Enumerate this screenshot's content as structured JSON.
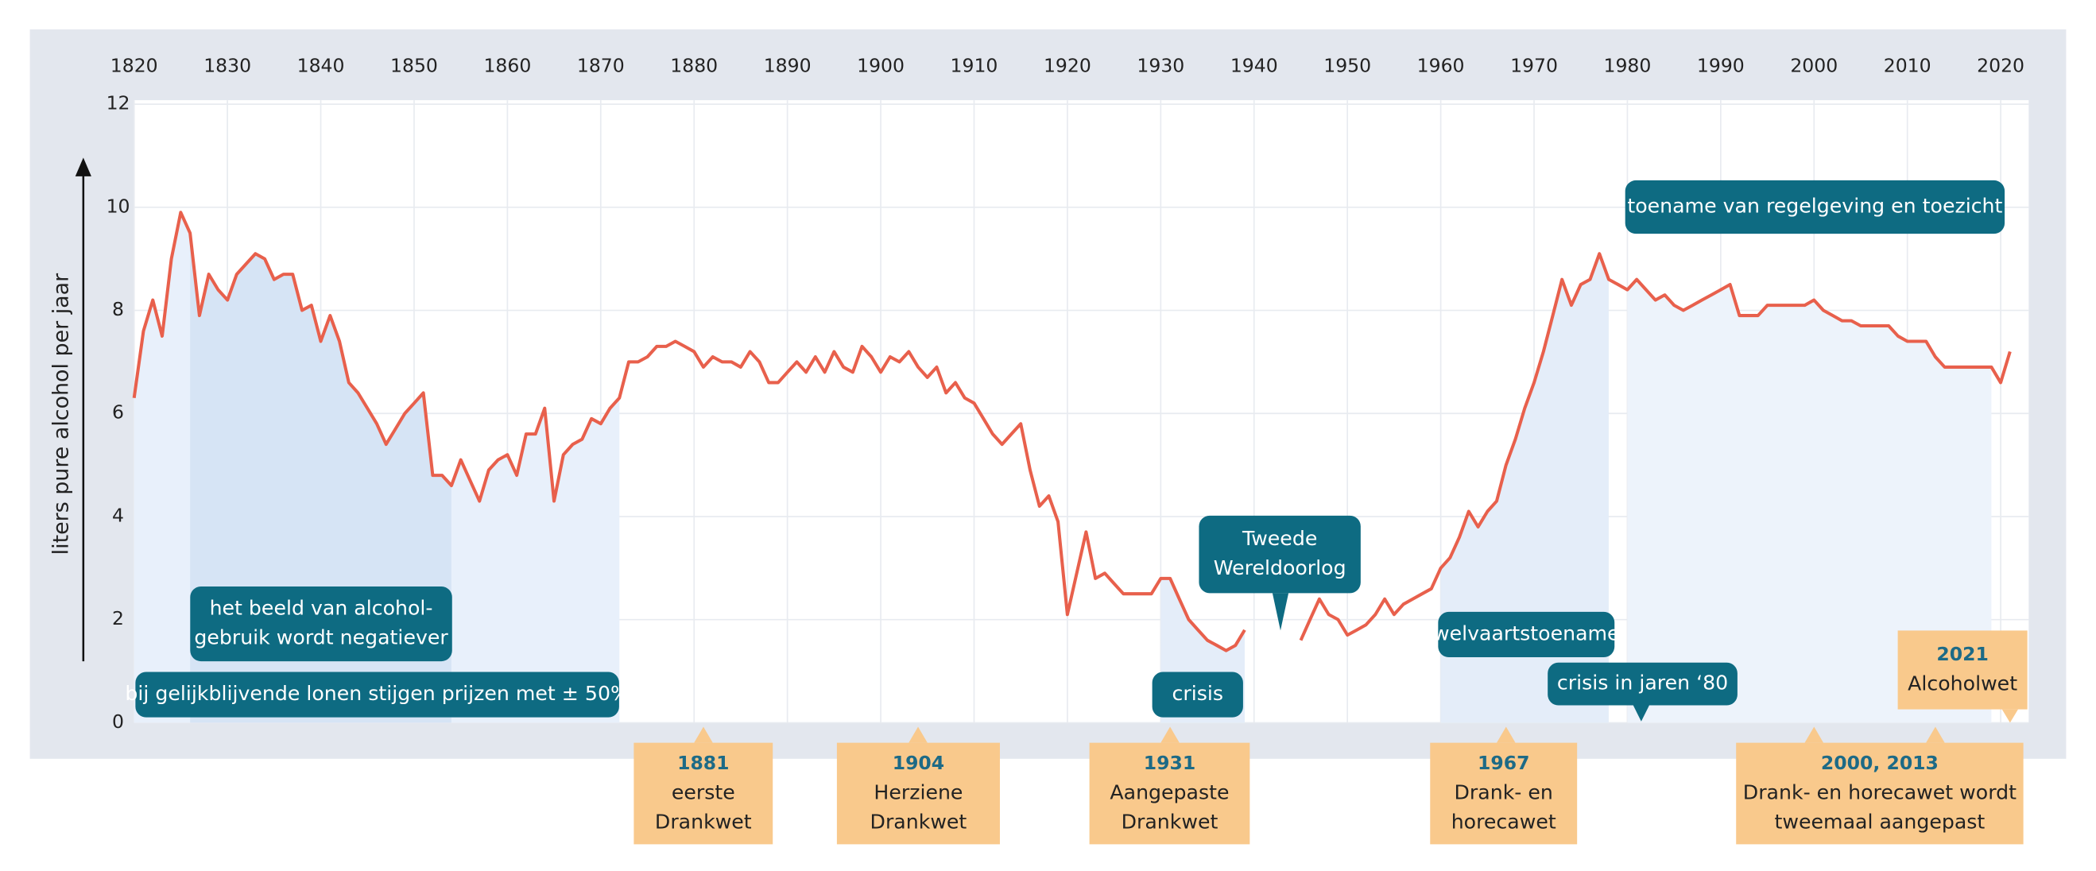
{
  "chart_data": {
    "type": "line",
    "ylabel": "liters pure alcohol per jaar",
    "xlim": [
      1820,
      2023
    ],
    "ylim": [
      0,
      12
    ],
    "xticks": [
      1820,
      1830,
      1840,
      1850,
      1860,
      1870,
      1880,
      1890,
      1900,
      1910,
      1920,
      1930,
      1940,
      1950,
      1960,
      1970,
      1980,
      1990,
      2000,
      2010,
      2020
    ],
    "yticks": [
      0,
      2,
      4,
      6,
      8,
      10,
      12
    ],
    "grid": true,
    "color": "#e8604c",
    "x": [
      1820,
      1821,
      1822,
      1823,
      1824,
      1825,
      1826,
      1827,
      1828,
      1829,
      1830,
      1831,
      1832,
      1833,
      1834,
      1835,
      1836,
      1837,
      1838,
      1839,
      1840,
      1841,
      1842,
      1843,
      1844,
      1845,
      1846,
      1847,
      1848,
      1849,
      1850,
      1851,
      1852,
      1853,
      1854,
      1855,
      1856,
      1857,
      1858,
      1859,
      1860,
      1861,
      1862,
      1863,
      1864,
      1865,
      1866,
      1867,
      1868,
      1869,
      1870,
      1871,
      1872,
      1873,
      1874,
      1875,
      1876,
      1877,
      1878,
      1879,
      1880,
      1881,
      1882,
      1883,
      1884,
      1885,
      1886,
      1887,
      1888,
      1889,
      1890,
      1891,
      1892,
      1893,
      1894,
      1895,
      1896,
      1897,
      1898,
      1899,
      1900,
      1901,
      1902,
      1903,
      1904,
      1905,
      1906,
      1907,
      1908,
      1909,
      1910,
      1911,
      1912,
      1913,
      1914,
      1915,
      1916,
      1917,
      1918,
      1919,
      1920,
      1921,
      1922,
      1923,
      1924,
      1925,
      1926,
      1927,
      1928,
      1929,
      1930,
      1931,
      1932,
      1933,
      1934,
      1935,
      1936,
      1937,
      1938,
      1939,
      1940,
      1941,
      1942,
      1943,
      1944,
      1945,
      1946,
      1947,
      1948,
      1949,
      1950,
      1951,
      1952,
      1953,
      1954,
      1955,
      1956,
      1957,
      1958,
      1959,
      1960,
      1961,
      1962,
      1963,
      1964,
      1965,
      1966,
      1967,
      1968,
      1969,
      1970,
      1971,
      1972,
      1973,
      1974,
      1975,
      1976,
      1977,
      1978,
      1979,
      1980,
      1981,
      1982,
      1983,
      1984,
      1985,
      1986,
      1987,
      1988,
      1989,
      1990,
      1991,
      1992,
      1993,
      1994,
      1995,
      1996,
      1997,
      1998,
      1999,
      2000,
      2001,
      2002,
      2003,
      2004,
      2005,
      2006,
      2007,
      2008,
      2009,
      2010,
      2011,
      2012,
      2013,
      2014,
      2015,
      2016,
      2017,
      2018,
      2019,
      2020,
      2021
    ],
    "values": [
      6.3,
      7.6,
      8.2,
      7.5,
      9.0,
      9.9,
      9.5,
      7.9,
      8.7,
      8.4,
      8.2,
      8.7,
      8.9,
      9.1,
      9.0,
      8.6,
      8.7,
      8.7,
      8.0,
      8.1,
      7.4,
      7.9,
      7.4,
      6.6,
      6.4,
      6.1,
      5.8,
      5.4,
      5.7,
      6.0,
      6.2,
      6.4,
      4.8,
      4.8,
      4.6,
      5.1,
      4.7,
      4.3,
      4.9,
      5.1,
      5.2,
      4.8,
      5.6,
      5.6,
      6.1,
      4.3,
      5.2,
      5.4,
      5.5,
      5.9,
      5.8,
      6.1,
      6.3,
      7.0,
      7.0,
      7.1,
      7.3,
      7.3,
      7.4,
      7.3,
      7.2,
      6.9,
      7.1,
      7.0,
      7.0,
      6.9,
      7.2,
      7.0,
      6.6,
      6.6,
      6.8,
      7.0,
      6.8,
      7.1,
      6.8,
      7.2,
      6.9,
      6.8,
      7.3,
      7.1,
      6.8,
      7.1,
      7.0,
      7.2,
      6.9,
      6.7,
      6.9,
      6.4,
      6.6,
      6.3,
      6.2,
      5.9,
      5.6,
      5.4,
      5.6,
      5.8,
      4.9,
      4.2,
      4.4,
      3.9,
      2.1,
      2.9,
      3.7,
      2.8,
      2.9,
      2.7,
      2.5,
      2.5,
      2.5,
      2.5,
      2.8,
      2.8,
      2.4,
      2.0,
      1.8,
      1.6,
      1.5,
      1.4,
      1.5,
      1.8,
      null,
      null,
      null,
      null,
      null,
      1.6,
      2.0,
      2.4,
      2.1,
      2.0,
      1.7,
      1.8,
      1.9,
      2.1,
      2.4,
      2.1,
      2.3,
      2.4,
      2.5,
      2.6,
      3.0,
      3.2,
      3.6,
      4.1,
      3.8,
      4.1,
      4.3,
      5.0,
      5.5,
      6.1,
      6.6,
      7.2,
      7.9,
      8.6,
      8.1,
      8.5,
      8.6,
      9.1,
      8.6,
      8.5,
      8.4,
      8.6,
      8.4,
      8.2,
      8.3,
      8.1,
      8.0,
      8.1,
      8.2,
      8.3,
      8.4,
      8.5,
      7.9,
      7.9,
      7.9,
      8.1,
      8.1,
      8.1,
      8.1,
      8.1,
      8.2,
      8.0,
      7.9,
      7.8,
      7.8,
      7.7,
      7.7,
      7.7,
      7.7,
      7.5,
      7.4,
      7.4,
      7.4,
      7.1,
      6.9,
      6.9,
      6.9,
      6.9,
      6.9,
      6.9,
      6.6,
      7.2
    ],
    "periods": [
      {
        "lines": [
          "bij gelijkblijvende lonen stijgen prijzen met ± 50%"
        ],
        "start": 1820,
        "end": 1872
      },
      {
        "lines": [
          "het beeld van alcohol-",
          "gebruik wordt negatiever"
        ],
        "start": 1826,
        "end": 1854
      },
      {
        "lines": [
          "crisis"
        ],
        "start": 1930,
        "end": 1939
      },
      {
        "lines": [
          "welvaartstoename"
        ],
        "start": 1960,
        "end": 1978
      },
      {
        "lines": [
          "toename van regelgeving en toezicht"
        ],
        "start": 1980,
        "end": 2019
      }
    ],
    "callouts": [
      {
        "lines": [
          "Tweede",
          "Wereldoorlog"
        ]
      },
      {
        "lines": [
          "crisis in jaren ‘80"
        ]
      }
    ],
    "events": [
      {
        "label": "1881",
        "lines": [
          "eerste",
          "Drankwet"
        ],
        "years": [
          1881
        ]
      },
      {
        "label": "1904",
        "lines": [
          "Herziene",
          "Drankwet"
        ],
        "years": [
          1904
        ]
      },
      {
        "label": "1931",
        "lines": [
          "Aangepaste",
          "Drankwet"
        ],
        "years": [
          1931
        ]
      },
      {
        "label": "1967",
        "lines": [
          "Drank- en",
          "horecawet"
        ],
        "years": [
          1967
        ]
      },
      {
        "label": "2000, 2013",
        "lines": [
          "Drank- en horecawet wordt",
          "tweemaal aangepast"
        ],
        "years": [
          2000,
          2013
        ]
      },
      {
        "label": "2021",
        "lines": [
          "Alcoholwet"
        ],
        "years": [
          2021
        ]
      }
    ]
  }
}
